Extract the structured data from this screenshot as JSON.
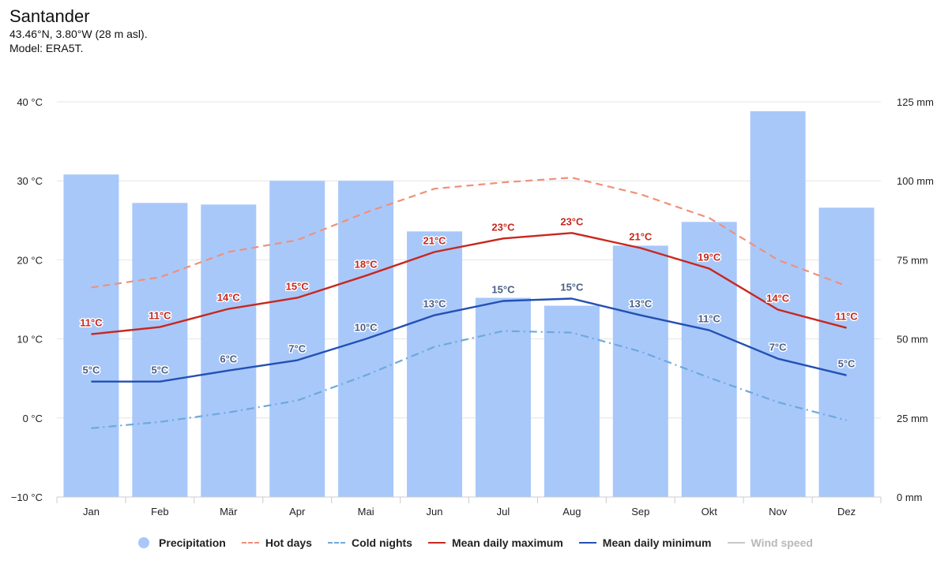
{
  "header": {
    "title": "Santander",
    "coords": "43.46°N, 3.80°W (28 m asl).",
    "model": "Model: ERA5T."
  },
  "chart_data": {
    "type": "bar+line",
    "categories": [
      "Jan",
      "Feb",
      "Mär",
      "Apr",
      "Mai",
      "Jun",
      "Jul",
      "Aug",
      "Sep",
      "Okt",
      "Nov",
      "Dez"
    ],
    "y_left": {
      "min": -10,
      "max": 40,
      "step": 10,
      "unit": "°C",
      "tick_labels": [
        "40 °C",
        "30 °C",
        "20 °C",
        "10 °C",
        "0 °C",
        "−10 °C"
      ]
    },
    "y_right": {
      "min": 0,
      "max": 125,
      "step": 25,
      "unit": "mm",
      "tick_labels": [
        "125 mm",
        "100 mm",
        "75 mm",
        "50 mm",
        "25 mm",
        "0 mm"
      ]
    },
    "grid": true,
    "legend_position": "bottom-center",
    "precipitation": {
      "name": "Precipitation",
      "color": "#a8c8fa",
      "axis": "right",
      "values": [
        102,
        93,
        92.5,
        100,
        100,
        84,
        63,
        60.5,
        79.5,
        87,
        122,
        91.5
      ]
    },
    "hot_days": {
      "name": "Hot days",
      "color": "#f0907a",
      "style": "dashed",
      "axis": "left",
      "values": [
        16.5,
        17.8,
        21,
        22.5,
        26,
        29,
        29.8,
        30.4,
        28.3,
        25.3,
        20,
        16.7
      ]
    },
    "cold_nights": {
      "name": "Cold nights",
      "color": "#6fa8dc",
      "style": "dash-dot",
      "axis": "left",
      "values": [
        -1.3,
        -0.5,
        0.7,
        2.2,
        5.4,
        9,
        11,
        10.8,
        8.4,
        5.1,
        2,
        -0.3
      ]
    },
    "mean_max": {
      "name": "Mean daily maximum",
      "color": "#c8281e",
      "axis": "left",
      "values": [
        10.6,
        11.5,
        13.8,
        15.2,
        18,
        21,
        22.7,
        23.4,
        21.5,
        18.9,
        13.7,
        11.4
      ],
      "labels": [
        "11°C",
        "11°C",
        "14°C",
        "15°C",
        "18°C",
        "21°C",
        "23°C",
        "23°C",
        "21°C",
        "19°C",
        "14°C",
        "11°C"
      ]
    },
    "mean_min": {
      "name": "Mean daily minimum",
      "color": "#2450b4",
      "axis": "left",
      "values": [
        4.6,
        4.6,
        6,
        7.3,
        10,
        13,
        14.8,
        15.1,
        13,
        11.1,
        7.5,
        5.4
      ],
      "labels": [
        "5°C",
        "5°C",
        "6°C",
        "7°C",
        "10°C",
        "13°C",
        "15°C",
        "15°C",
        "13°C",
        "11°C",
        "7°C",
        "5°C"
      ]
    },
    "wind_speed": {
      "name": "Wind speed",
      "color": "#b8b8b8",
      "visible": false
    }
  },
  "legend": [
    {
      "key": "precipitation",
      "label": "Precipitation"
    },
    {
      "key": "hot_days",
      "label": "Hot days"
    },
    {
      "key": "cold_nights",
      "label": "Cold nights"
    },
    {
      "key": "mean_max",
      "label": "Mean daily maximum"
    },
    {
      "key": "mean_min",
      "label": "Mean daily minimum"
    },
    {
      "key": "wind_speed",
      "label": "Wind speed"
    }
  ]
}
